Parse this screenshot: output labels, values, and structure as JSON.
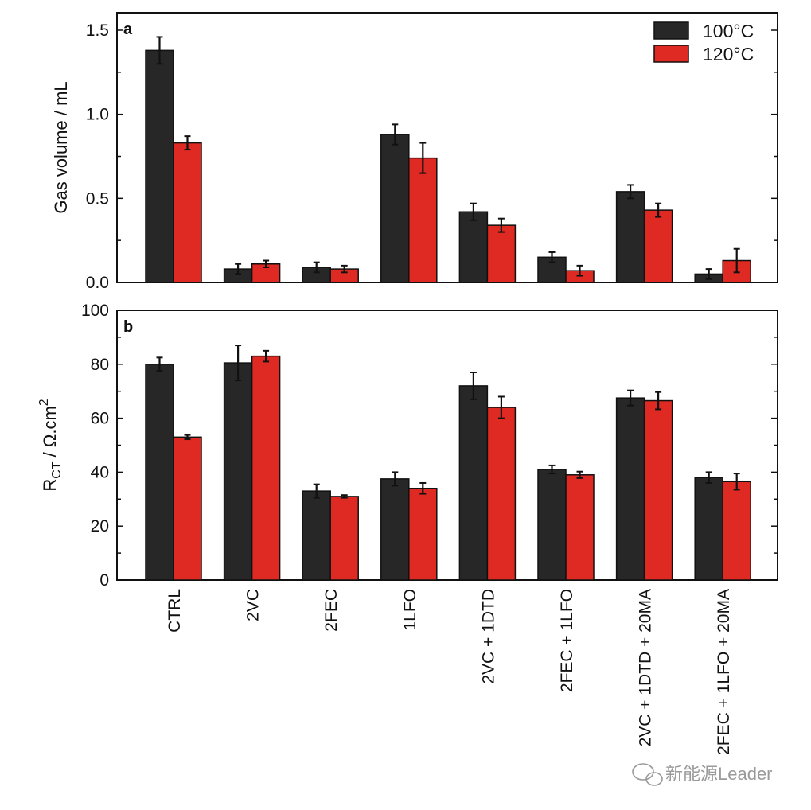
{
  "chart_data": [
    {
      "type": "bar",
      "panel": "a",
      "ylabel": "Gas volume / mL",
      "ylim": [
        0,
        1.5
      ],
      "yticks": [
        "0.0",
        "0.5",
        "1.0",
        "1.5"
      ],
      "ytick_values": [
        0,
        0.5,
        1.0,
        1.5
      ],
      "minor_step": 0.25,
      "legend_position": "top-right",
      "categories": [
        "CTRL",
        "2VC",
        "2FEC",
        "1LFO",
        "2VC + 1DTD",
        "2FEC + 1LFO",
        "2VC + 1DTD + 20MA",
        "2FEC + 1LFO + 20MA"
      ],
      "series": [
        {
          "name": "100°C",
          "color": "#272727",
          "values": [
            1.38,
            0.08,
            0.09,
            0.88,
            0.42,
            0.15,
            0.54,
            0.05
          ],
          "errors": [
            0.08,
            0.03,
            0.03,
            0.06,
            0.05,
            0.03,
            0.04,
            0.03
          ]
        },
        {
          "name": "120°C",
          "color": "#de2a22",
          "values": [
            0.83,
            0.11,
            0.08,
            0.74,
            0.34,
            0.07,
            0.43,
            0.13
          ],
          "errors": [
            0.04,
            0.02,
            0.02,
            0.09,
            0.04,
            0.03,
            0.04,
            0.07
          ]
        }
      ]
    },
    {
      "type": "bar",
      "panel": "b",
      "ylabel_main": "R",
      "ylabel_sub": "CT",
      "ylabel_rest": " / Ω.cm",
      "ylabel_sup": "2",
      "ylim": [
        0,
        100
      ],
      "yticks": [
        "0",
        "20",
        "40",
        "60",
        "80",
        "100"
      ],
      "ytick_values": [
        0,
        20,
        40,
        60,
        80,
        100
      ],
      "minor_step": 10,
      "categories": [
        "CTRL",
        "2VC",
        "2FEC",
        "1LFO",
        "2VC + 1DTD",
        "2FEC + 1LFO",
        "2VC + 1DTD + 20MA",
        "2FEC + 1LFO + 20MA"
      ],
      "series": [
        {
          "name": "100°C",
          "color": "#272727",
          "values": [
            80,
            80.5,
            33,
            37.5,
            72,
            41,
            67.5,
            38
          ],
          "errors": [
            2.5,
            6.5,
            2.5,
            2.5,
            5,
            1.5,
            2.8,
            2
          ]
        },
        {
          "name": "120°C",
          "color": "#de2a22",
          "values": [
            53,
            83,
            31,
            34,
            64,
            39,
            66.5,
            36.5
          ],
          "errors": [
            0.8,
            2,
            0.5,
            2,
            4,
            1.2,
            3.2,
            3
          ]
        }
      ]
    }
  ],
  "watermark": "新能源Leader"
}
